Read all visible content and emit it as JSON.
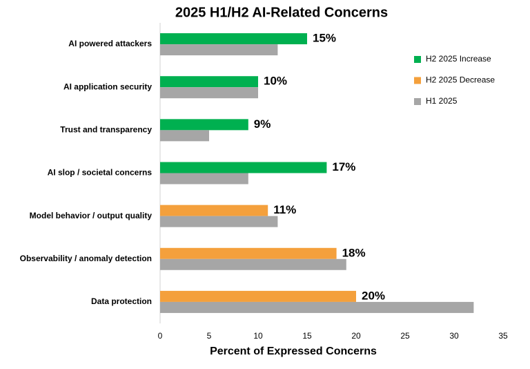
{
  "chart_data": {
    "type": "hbar",
    "title": "2025 H1/H2 AI-Related Concerns",
    "xlabel": "Percent of Expressed Concerns",
    "categories": [
      "AI powered attackers",
      "AI application security",
      "Trust and transparency",
      "AI slop / societal concerns",
      "Model behavior / output quality",
      "Observability / anomaly detection",
      "Data protection"
    ],
    "series": [
      {
        "name": "H2 2025 Increase",
        "color": "#00b050",
        "values": [
          15,
          10,
          9,
          17,
          null,
          null,
          null
        ],
        "value_labels": [
          "15%",
          "10%",
          "9%",
          "17%",
          null,
          null,
          null
        ]
      },
      {
        "name": "H2 2025 Decrease",
        "color": "#f4a03c",
        "values": [
          null,
          null,
          null,
          null,
          11,
          18,
          20
        ],
        "value_labels": [
          null,
          null,
          null,
          null,
          "11%",
          "18%",
          "20%"
        ]
      },
      {
        "name": "H1 2025",
        "color": "#a6a6a6",
        "values": [
          12,
          10,
          5,
          9,
          12,
          19,
          32
        ]
      }
    ],
    "xlim": [
      0,
      35
    ],
    "xticks": [
      0,
      5,
      10,
      15,
      20,
      25,
      30,
      35
    ],
    "legend": "right"
  }
}
